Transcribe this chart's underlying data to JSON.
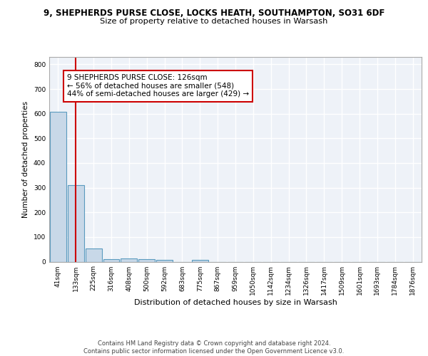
{
  "title1": "9, SHEPHERDS PURSE CLOSE, LOCKS HEATH, SOUTHAMPTON, SO31 6DF",
  "title2": "Size of property relative to detached houses in Warsash",
  "xlabel": "Distribution of detached houses by size in Warsash",
  "ylabel": "Number of detached properties",
  "bin_labels": [
    "41sqm",
    "133sqm",
    "225sqm",
    "316sqm",
    "408sqm",
    "500sqm",
    "592sqm",
    "683sqm",
    "775sqm",
    "867sqm",
    "959sqm",
    "1050sqm",
    "1142sqm",
    "1234sqm",
    "1326sqm",
    "1417sqm",
    "1509sqm",
    "1601sqm",
    "1693sqm",
    "1784sqm",
    "1876sqm"
  ],
  "bin_values": [
    609,
    309,
    52,
    11,
    12,
    11,
    6,
    0,
    8,
    0,
    0,
    0,
    0,
    0,
    0,
    0,
    0,
    0,
    0,
    0,
    0
  ],
  "bar_color": "#c8d8e8",
  "bar_edge_color": "#5a9abf",
  "property_line_x": 1,
  "property_line_color": "#cc0000",
  "annotation_text": "9 SHEPHERDS PURSE CLOSE: 126sqm\n← 56% of detached houses are smaller (548)\n44% of semi-detached houses are larger (429) →",
  "annotation_box_color": "white",
  "annotation_box_edge_color": "#cc0000",
  "ylim": [
    0,
    830
  ],
  "yticks": [
    0,
    100,
    200,
    300,
    400,
    500,
    600,
    700,
    800
  ],
  "footer_text": "Contains HM Land Registry data © Crown copyright and database right 2024.\nContains public sector information licensed under the Open Government Licence v3.0.",
  "bg_color": "#eef2f8",
  "grid_color": "white",
  "title1_fontsize": 8.5,
  "title2_fontsize": 8.2,
  "xlabel_fontsize": 8.0,
  "ylabel_fontsize": 7.5,
  "annotation_fontsize": 7.5,
  "tick_fontsize": 6.5,
  "footer_fontsize": 6.0
}
